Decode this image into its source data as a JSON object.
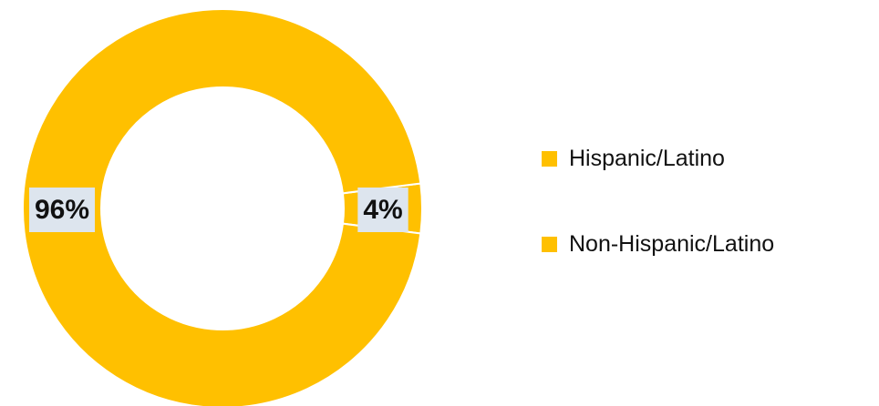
{
  "chart_data": {
    "type": "pie",
    "style": "donut",
    "categories": [
      "Hispanic/Latino",
      "Non-Hispanic/Latino"
    ],
    "values": [
      4,
      96
    ],
    "value_labels": [
      "4%",
      "96%"
    ],
    "colors": [
      "#ffc000",
      "#ffc000"
    ],
    "label_box_color": "#dde5ee",
    "legend": {
      "placement": "right",
      "entries": [
        "Hispanic/Latino",
        "Non-Hispanic/Latino"
      ]
    }
  }
}
